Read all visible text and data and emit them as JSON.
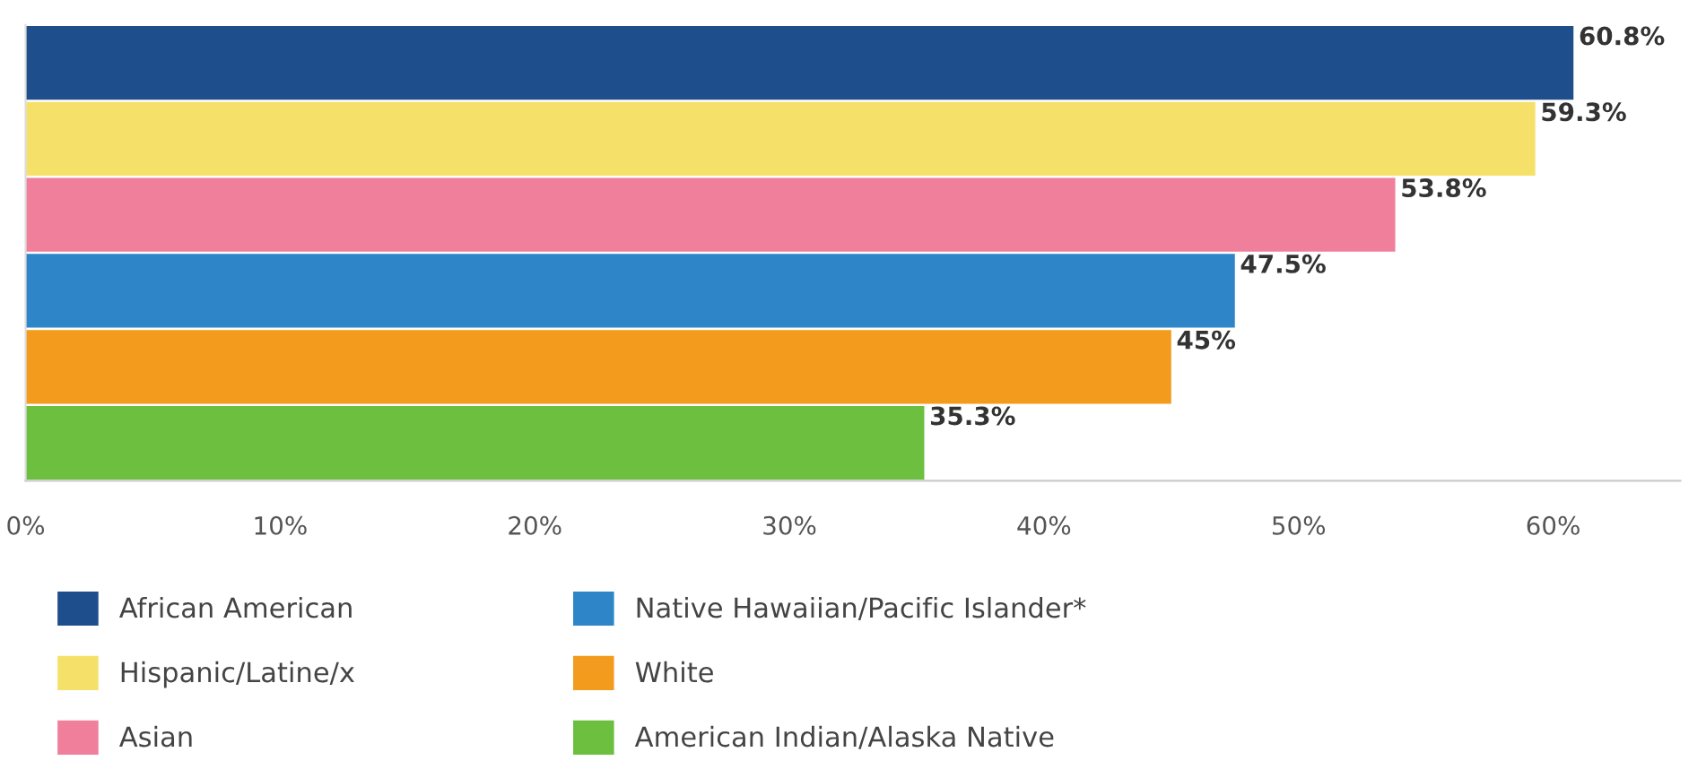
{
  "chart_data": {
    "type": "bar",
    "orientation": "horizontal",
    "categories": [
      null
    ],
    "series": [
      {
        "name": "African American",
        "color": "#1f4e8c",
        "values": [
          60.8
        ],
        "value_labels": [
          "60.8%"
        ]
      },
      {
        "name": "Hispanic/Latine/x",
        "color": "#f5e16a",
        "values": [
          59.3
        ],
        "value_labels": [
          "59.3%"
        ]
      },
      {
        "name": "Asian",
        "color": "#f07f9c",
        "values": [
          53.8
        ],
        "value_labels": [
          "53.8%"
        ]
      },
      {
        "name": "Native Hawaiian/Pacific Islander*",
        "color": "#2e86c8",
        "values": [
          47.5
        ],
        "value_labels": [
          "47.5%"
        ]
      },
      {
        "name": "White",
        "color": "#f29b1d",
        "values": [
          45
        ],
        "value_labels": [
          "45%"
        ]
      },
      {
        "name": "American Indian/Alaska Native",
        "color": "#6cbf3f",
        "values": [
          35.3
        ],
        "value_labels": [
          "35.3%"
        ]
      }
    ],
    "xlim": [
      0,
      65
    ],
    "xticks": [
      {
        "value": 0,
        "label": "0%"
      },
      {
        "value": 10,
        "label": "10%"
      },
      {
        "value": 20,
        "label": "20%"
      },
      {
        "value": 30,
        "label": "30%"
      },
      {
        "value": 40,
        "label": "40%"
      },
      {
        "value": 50,
        "label": "50%"
      },
      {
        "value": 60,
        "label": "60%"
      }
    ],
    "tick_labels": "x",
    "grid": false,
    "legend": "bottom"
  }
}
